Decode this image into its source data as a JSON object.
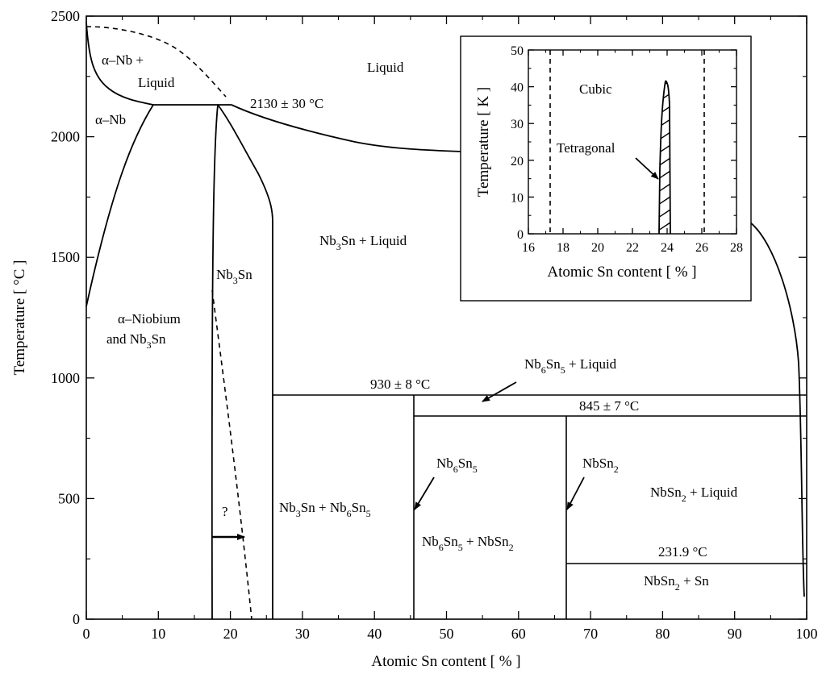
{
  "main": {
    "x_axis_label": "Atomic Sn content [ % ]",
    "y_axis_label": "Temperature [ °C ]",
    "x_ticks": [
      "0",
      "10",
      "20",
      "30",
      "40",
      "50",
      "60",
      "70",
      "80",
      "90",
      "100"
    ],
    "y_ticks": [
      "0",
      "500",
      "1000",
      "1500",
      "2000",
      "2500"
    ],
    "xlim": [
      0,
      100
    ],
    "ylim": [
      0,
      2500
    ]
  },
  "labels": {
    "liquid": "Liquid",
    "alpha_nb_liquid_1": "α–Nb +",
    "alpha_nb_liquid_2": "Liquid",
    "alpha_nb": "α–Nb",
    "peritectic_temp": "2130 ± 30 °C",
    "nb3sn_liquid_main": "Nb",
    "nb3sn_liquid_sub": "3",
    "nb3sn_liquid_tail": "Sn + Liquid",
    "nb3sn_main": "Nb",
    "nb3sn_sub": "3",
    "nb3sn_tail": "Sn",
    "alpha_niobium_1": "α–Niobium",
    "alpha_niobium_2_main": "and Nb",
    "alpha_niobium_2_sub": "3",
    "alpha_niobium_2_tail": "Sn",
    "nb6sn5_liquid_1": "Nb",
    "nb6sn5_liquid_sub1": "6",
    "nb6sn5_liquid_2": "Sn",
    "nb6sn5_liquid_sub2": "5",
    "nb6sn5_liquid_tail": " + Liquid",
    "temp_930": "930 ± 8 °C",
    "temp_845": "845 ± 7 °C",
    "nb6sn5_a": "Nb",
    "nb6sn5_a_sub1": "6",
    "nb6sn5_b": "Sn",
    "nb6sn5_b_sub2": "5",
    "nbsn2_a": "NbSn",
    "nbsn2_a_sub": "2",
    "nbsn2_liquid_a": "NbSn",
    "nbsn2_liquid_sub": "2",
    "nbsn2_liquid_tail": " + Liquid",
    "question": "?",
    "nb3sn_nb6sn5_1": "Nb",
    "nb3sn_nb6sn5_s1": "3",
    "nb3sn_nb6sn5_2": "Sn + Nb",
    "nb3sn_nb6sn5_s2": "6",
    "nb3sn_nb6sn5_3": "Sn",
    "nb3sn_nb6sn5_s3": "5",
    "nb6sn5_nbsn2_1": "Nb",
    "nb6sn5_nbsn2_s1": "6",
    "nb6sn5_nbsn2_2": "Sn",
    "nb6sn5_nbsn2_s2": "5",
    "nb6sn5_nbsn2_3": " + NbSn",
    "nb6sn5_nbsn2_s3": "2",
    "temp_2319": "231.9 °C",
    "nbsn2_sn_1": "NbSn",
    "nbsn2_sn_s": "2",
    "nbsn2_sn_tail": " + Sn"
  },
  "inset": {
    "x_axis_label": "Atomic Sn content [ % ]",
    "y_axis_label": "Temperature [ K ]",
    "x_ticks": [
      "16",
      "18",
      "20",
      "22",
      "24",
      "26",
      "28"
    ],
    "y_ticks": [
      "0",
      "10",
      "20",
      "30",
      "40",
      "50"
    ],
    "xlim": [
      16,
      28
    ],
    "ylim": [
      0,
      50
    ],
    "cubic": "Cubic",
    "tetragonal": "Tetragonal"
  }
}
